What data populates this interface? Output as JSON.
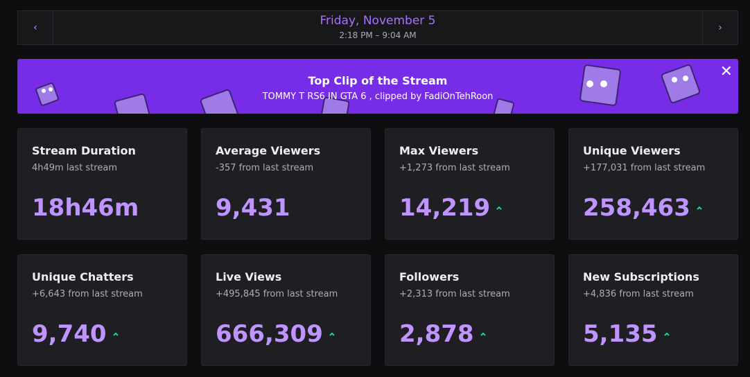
{
  "header": {
    "date": "Friday, November 5",
    "time_range": "2:18 PM – 9:04 AM"
  },
  "banner": {
    "title": "Top Clip of the Stream",
    "subtitle": "TOMMY T RS6 IN GTA 6 , clipped by FadiOnTehRoon"
  },
  "cards": [
    {
      "title": "Stream Duration",
      "subtitle": "4h49m last stream",
      "value": "18h46m"
    },
    {
      "title": "Average Viewers",
      "subtitle": "-357 from last stream",
      "value": "9,431"
    },
    {
      "title": "Max Viewers",
      "subtitle": "+1,273 from last stream",
      "value": "14,219"
    },
    {
      "title": "Unique Viewers",
      "subtitle": "+177,031 from last stream",
      "value": "258,463"
    },
    {
      "title": "Unique Chatters",
      "subtitle": "+6,643 from last stream",
      "value": "9,740"
    },
    {
      "title": "Live Views",
      "subtitle": "+495,845 from last stream",
      "value": "666,309"
    },
    {
      "title": "Followers",
      "subtitle": "+2,313 from last stream",
      "value": "2,878"
    },
    {
      "title": "New Subscriptions",
      "subtitle": "+4,836 from last stream",
      "value": "5,135"
    }
  ]
}
